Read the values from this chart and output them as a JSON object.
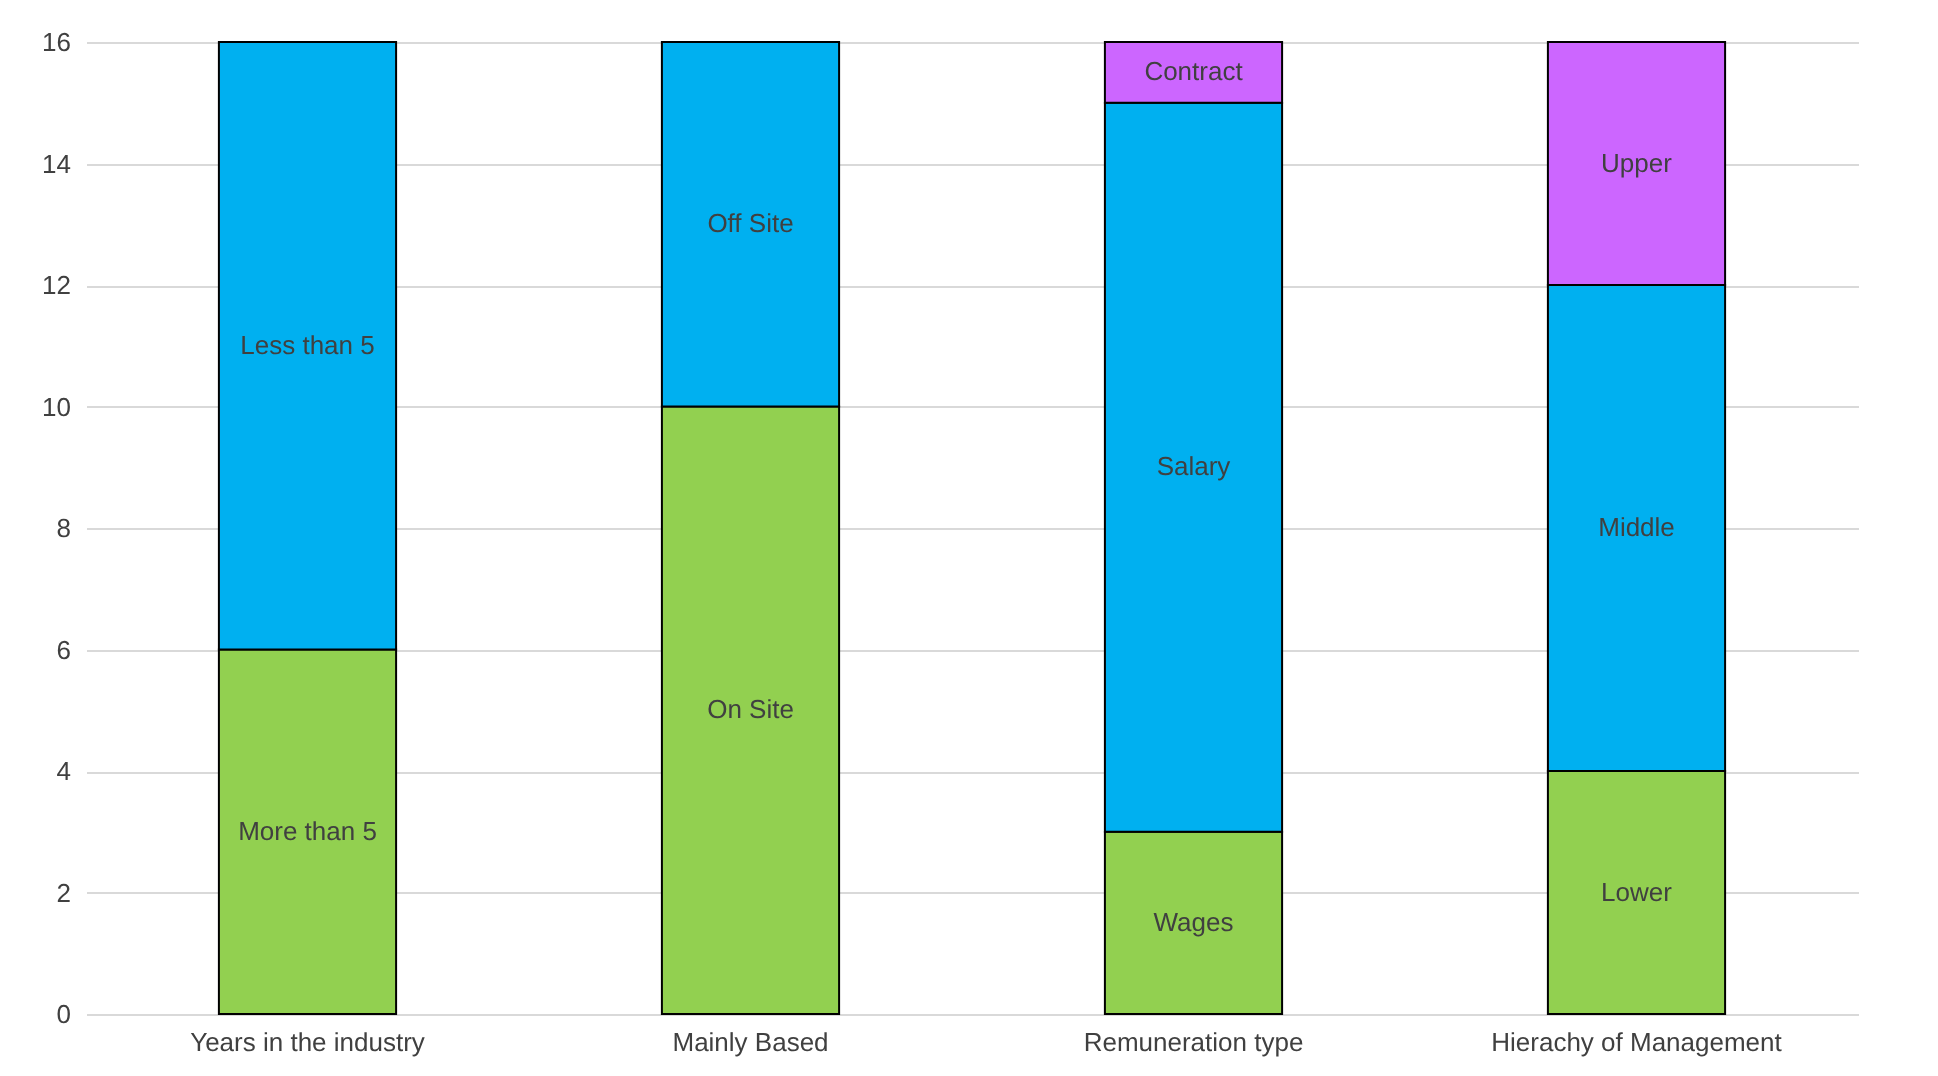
{
  "chart_data": {
    "type": "bar",
    "stacked": true,
    "categories": [
      "Years in the industry",
      "Mainly Based",
      "Remuneration type",
      "Hierachy of Management"
    ],
    "series": [
      {
        "color": "#92d050",
        "values": [
          6,
          10,
          3,
          4
        ],
        "value_labels": [
          "More than 5",
          "On Site",
          "Wages",
          "Lower"
        ]
      },
      {
        "color": "#00b0f0",
        "values": [
          10,
          6,
          12,
          8
        ],
        "value_labels": [
          "Less than 5",
          "Off Site",
          "Salary",
          "Middle"
        ]
      },
      {
        "color": "#cc66ff",
        "values": [
          null,
          null,
          1,
          4
        ],
        "value_labels": [
          null,
          null,
          "Contract",
          "Upper"
        ]
      }
    ],
    "ylim": [
      0,
      16
    ],
    "yticks": [
      0,
      2,
      4,
      6,
      8,
      10,
      12,
      14,
      16
    ],
    "grid": "y"
  }
}
